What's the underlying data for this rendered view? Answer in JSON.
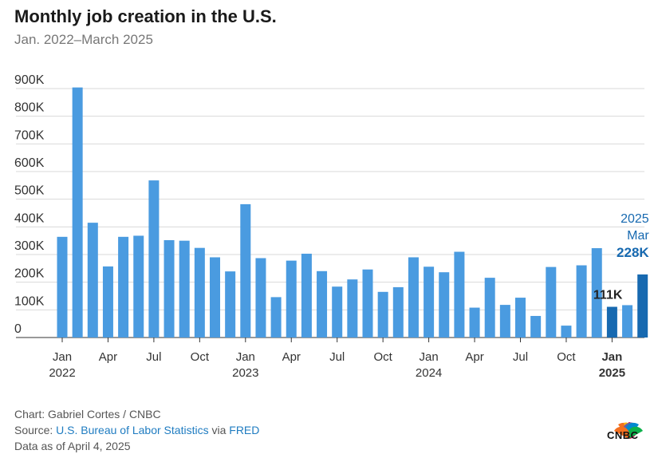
{
  "title": "Monthly job creation in the U.S.",
  "subtitle": "Jan. 2022–March 2025",
  "footer": {
    "chart_prefix": "Chart: Gabriel Cortes / CNBC",
    "source_prefix": "Source: ",
    "source_name": "U.S. Bureau of Labor Statistics",
    "source_via": " via ",
    "source_fred": "FRED",
    "data_as_of": "Data as of April 4, 2025"
  },
  "logo_text": "CNBC",
  "colors": {
    "bar": "#4a9be0",
    "highlight": "#1769b0",
    "grid": "#d9d9d9",
    "axis": "#333333"
  },
  "chart_data": {
    "type": "bar",
    "title": "Monthly job creation in the U.S.",
    "subtitle": "Jan. 2022–March 2025",
    "y_ticks": [
      "0",
      "100K",
      "200K",
      "300K",
      "400K",
      "500K",
      "600K",
      "700K",
      "800K",
      "900K"
    ],
    "ylim": [
      0,
      900000
    ],
    "grid": true,
    "x_tick_labels": [
      {
        "month": "Jan",
        "year": "2022",
        "index": 0
      },
      {
        "month": "Apr",
        "year": "",
        "index": 3
      },
      {
        "month": "Jul",
        "year": "",
        "index": 6
      },
      {
        "month": "Oct",
        "year": "",
        "index": 9
      },
      {
        "month": "Jan",
        "year": "2023",
        "index": 12
      },
      {
        "month": "Apr",
        "year": "",
        "index": 15
      },
      {
        "month": "Jul",
        "year": "",
        "index": 18
      },
      {
        "month": "Oct",
        "year": "",
        "index": 21
      },
      {
        "month": "Jan",
        "year": "2024",
        "index": 24
      },
      {
        "month": "Apr",
        "year": "",
        "index": 27
      },
      {
        "month": "Jul",
        "year": "",
        "index": 30
      },
      {
        "month": "Oct",
        "year": "",
        "index": 33
      },
      {
        "month": "Jan",
        "year": "2025",
        "index": 36,
        "bold": true
      }
    ],
    "categories": [
      "2022-01",
      "2022-02",
      "2022-03",
      "2022-04",
      "2022-05",
      "2022-06",
      "2022-07",
      "2022-08",
      "2022-09",
      "2022-10",
      "2022-11",
      "2022-12",
      "2023-01",
      "2023-02",
      "2023-03",
      "2023-04",
      "2023-05",
      "2023-06",
      "2023-07",
      "2023-08",
      "2023-09",
      "2023-10",
      "2023-11",
      "2023-12",
      "2024-01",
      "2024-02",
      "2024-03",
      "2024-04",
      "2024-05",
      "2024-06",
      "2024-07",
      "2024-08",
      "2024-09",
      "2024-10",
      "2024-11",
      "2024-12",
      "2025-01",
      "2025-02",
      "2025-03"
    ],
    "values": [
      364000,
      904000,
      415000,
      257000,
      364000,
      368000,
      568000,
      352000,
      350000,
      324000,
      290000,
      239000,
      482000,
      287000,
      146000,
      278000,
      303000,
      240000,
      184000,
      210000,
      246000,
      165000,
      182000,
      290000,
      256000,
      236000,
      310000,
      108000,
      216000,
      118000,
      144000,
      78000,
      255000,
      43000,
      261000,
      323000,
      111000,
      117000,
      228000
    ],
    "highlight_indices": [
      36,
      38
    ],
    "annotations": [
      {
        "index": 36,
        "label": "111K"
      },
      {
        "index": 38,
        "label": "228K",
        "header": [
          "2025",
          "Mar"
        ]
      }
    ]
  }
}
